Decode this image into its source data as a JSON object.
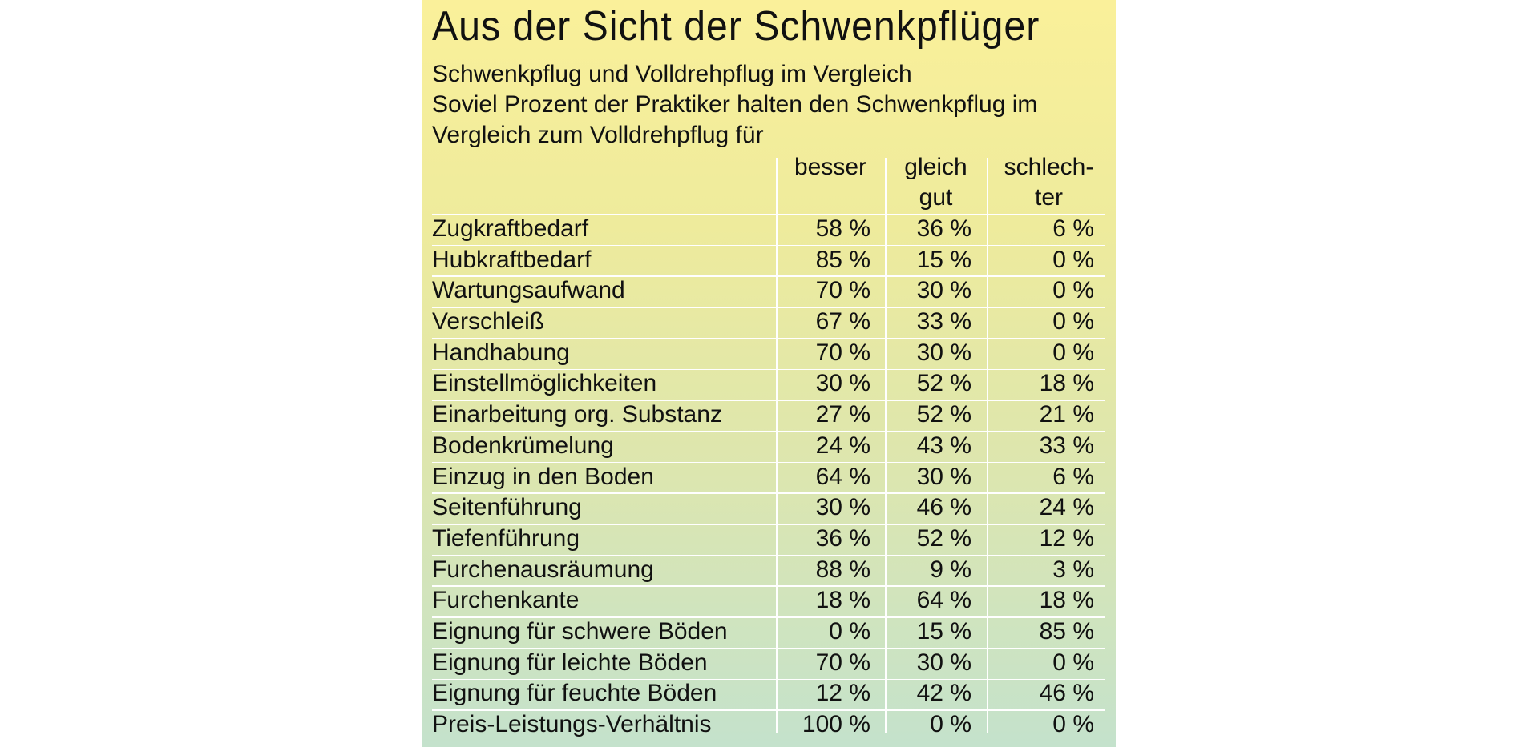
{
  "title": "Aus der Sicht der Schwenkpflüger",
  "subtitle_lines": [
    "Schwenkpflug und Volldrehpflug im Vergleich",
    "Soviel Prozent der Praktiker halten den Schwenkpflug im",
    "Vergleich zum Volldrehpflug für"
  ],
  "columns": [
    "besser",
    "gleich gut",
    "schlech-ter"
  ],
  "column_lines": [
    [
      "besser"
    ],
    [
      "gleich",
      "gut"
    ],
    [
      "schlech-",
      "ter"
    ]
  ],
  "rows": [
    {
      "label": "Zugkraftbedarf",
      "besser": "58 %",
      "gleich_gut": "36 %",
      "schlechter": "6 %"
    },
    {
      "label": "Hubkraftbedarf",
      "besser": "85 %",
      "gleich_gut": "15 %",
      "schlechter": "0 %"
    },
    {
      "label": "Wartungsaufwand",
      "besser": "70 %",
      "gleich_gut": "30 %",
      "schlechter": "0 %"
    },
    {
      "label": "Verschleiß",
      "besser": "67 %",
      "gleich_gut": "33 %",
      "schlechter": "0 %"
    },
    {
      "label": "Handhabung",
      "besser": "70 %",
      "gleich_gut": "30 %",
      "schlechter": "0 %"
    },
    {
      "label": "Einstellmöglichkeiten",
      "besser": "30 %",
      "gleich_gut": "52 %",
      "schlechter": "18 %"
    },
    {
      "label": "Einarbeitung org. Substanz",
      "besser": "27 %",
      "gleich_gut": "52 %",
      "schlechter": "21 %"
    },
    {
      "label": "Bodenkrümelung",
      "besser": "24 %",
      "gleich_gut": "43 %",
      "schlechter": "33 %"
    },
    {
      "label": "Einzug in den Boden",
      "besser": "64 %",
      "gleich_gut": "30 %",
      "schlechter": "6 %"
    },
    {
      "label": "Seitenführung",
      "besser": "30 %",
      "gleich_gut": "46 %",
      "schlechter": "24 %"
    },
    {
      "label": "Tiefenführung",
      "besser": "36 %",
      "gleich_gut": "52 %",
      "schlechter": "12 %"
    },
    {
      "label": "Furchenausräumung",
      "besser": "88 %",
      "gleich_gut": "9 %",
      "schlechter": "3 %"
    },
    {
      "label": "Furchenkante",
      "besser": "18 %",
      "gleich_gut": "64 %",
      "schlechter": "18 %"
    },
    {
      "label": "Eignung für schwere Böden",
      "besser": "0 %",
      "gleich_gut": "15 %",
      "schlechter": "85 %"
    },
    {
      "label": "Eignung für leichte Böden",
      "besser": "70 %",
      "gleich_gut": "30 %",
      "schlechter": "0 %"
    },
    {
      "label": "Eignung für feuchte Böden",
      "besser": "12 %",
      "gleich_gut": "42 %",
      "schlechter": "46 %"
    },
    {
      "label": "Preis-Leistungs-Verhältnis",
      "besser": "100 %",
      "gleich_gut": "0 %",
      "schlechter": "0 %"
    }
  ],
  "colors": {
    "gradient_top": "#faf09a",
    "gradient_bottom": "#c4e2cc",
    "rule": "#ffffff",
    "text": "#111111"
  }
}
